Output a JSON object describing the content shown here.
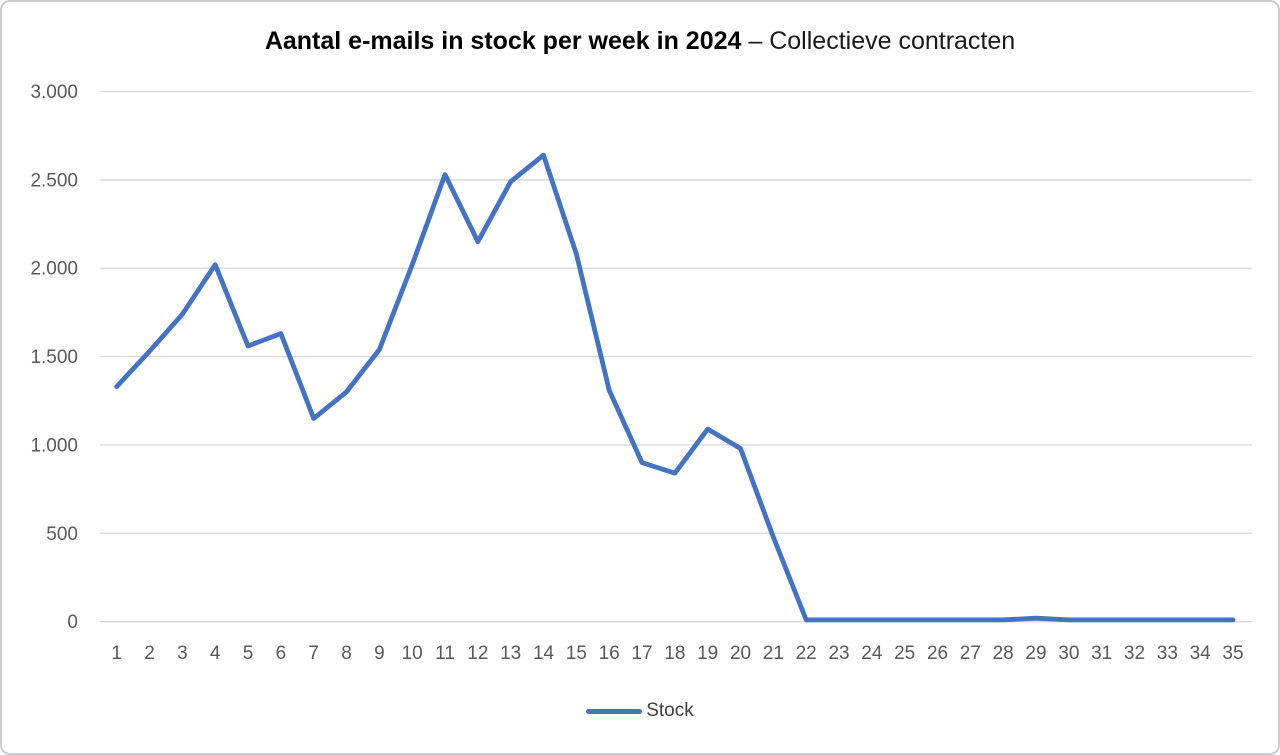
{
  "title": {
    "bold": "Aantal e-mails in stock per week in 2024",
    "regular": " – Collectieve contracten"
  },
  "chart_data": {
    "type": "line",
    "title": "Aantal e-mails in stock per week in 2024 – Collectieve contracten",
    "xlabel": "",
    "ylabel": "",
    "categories": [
      1,
      2,
      3,
      4,
      5,
      6,
      7,
      8,
      9,
      10,
      11,
      12,
      13,
      14,
      15,
      16,
      17,
      18,
      19,
      20,
      21,
      22,
      23,
      24,
      25,
      26,
      27,
      28,
      29,
      30,
      31,
      32,
      33,
      34,
      35
    ],
    "series": [
      {
        "name": "Stock",
        "color": "#4472C4",
        "values": [
          1330,
          1530,
          1740,
          2020,
          1560,
          1630,
          1150,
          1300,
          1540,
          2020,
          2530,
          2150,
          2490,
          2640,
          2080,
          1310,
          900,
          840,
          1090,
          980,
          480,
          10,
          10,
          10,
          10,
          10,
          10,
          10,
          20,
          10,
          10,
          10,
          10,
          10,
          10
        ]
      }
    ],
    "ylim": [
      0,
      3000
    ],
    "y_ticks": {
      "values": [
        0,
        500,
        1000,
        1500,
        2000,
        2500,
        3000
      ],
      "labels": [
        "0",
        "500",
        "1.000",
        "1.500",
        "2.000",
        "2.500",
        "3.000"
      ]
    },
    "grid": true,
    "legend_position": "bottom",
    "colors": {
      "line": "#4472C4",
      "gridline": "#D9D9D9",
      "tick_label": "#595959",
      "legend_label": "#404040",
      "background": "#FFFFFF",
      "border": "#CCCCCC"
    }
  }
}
